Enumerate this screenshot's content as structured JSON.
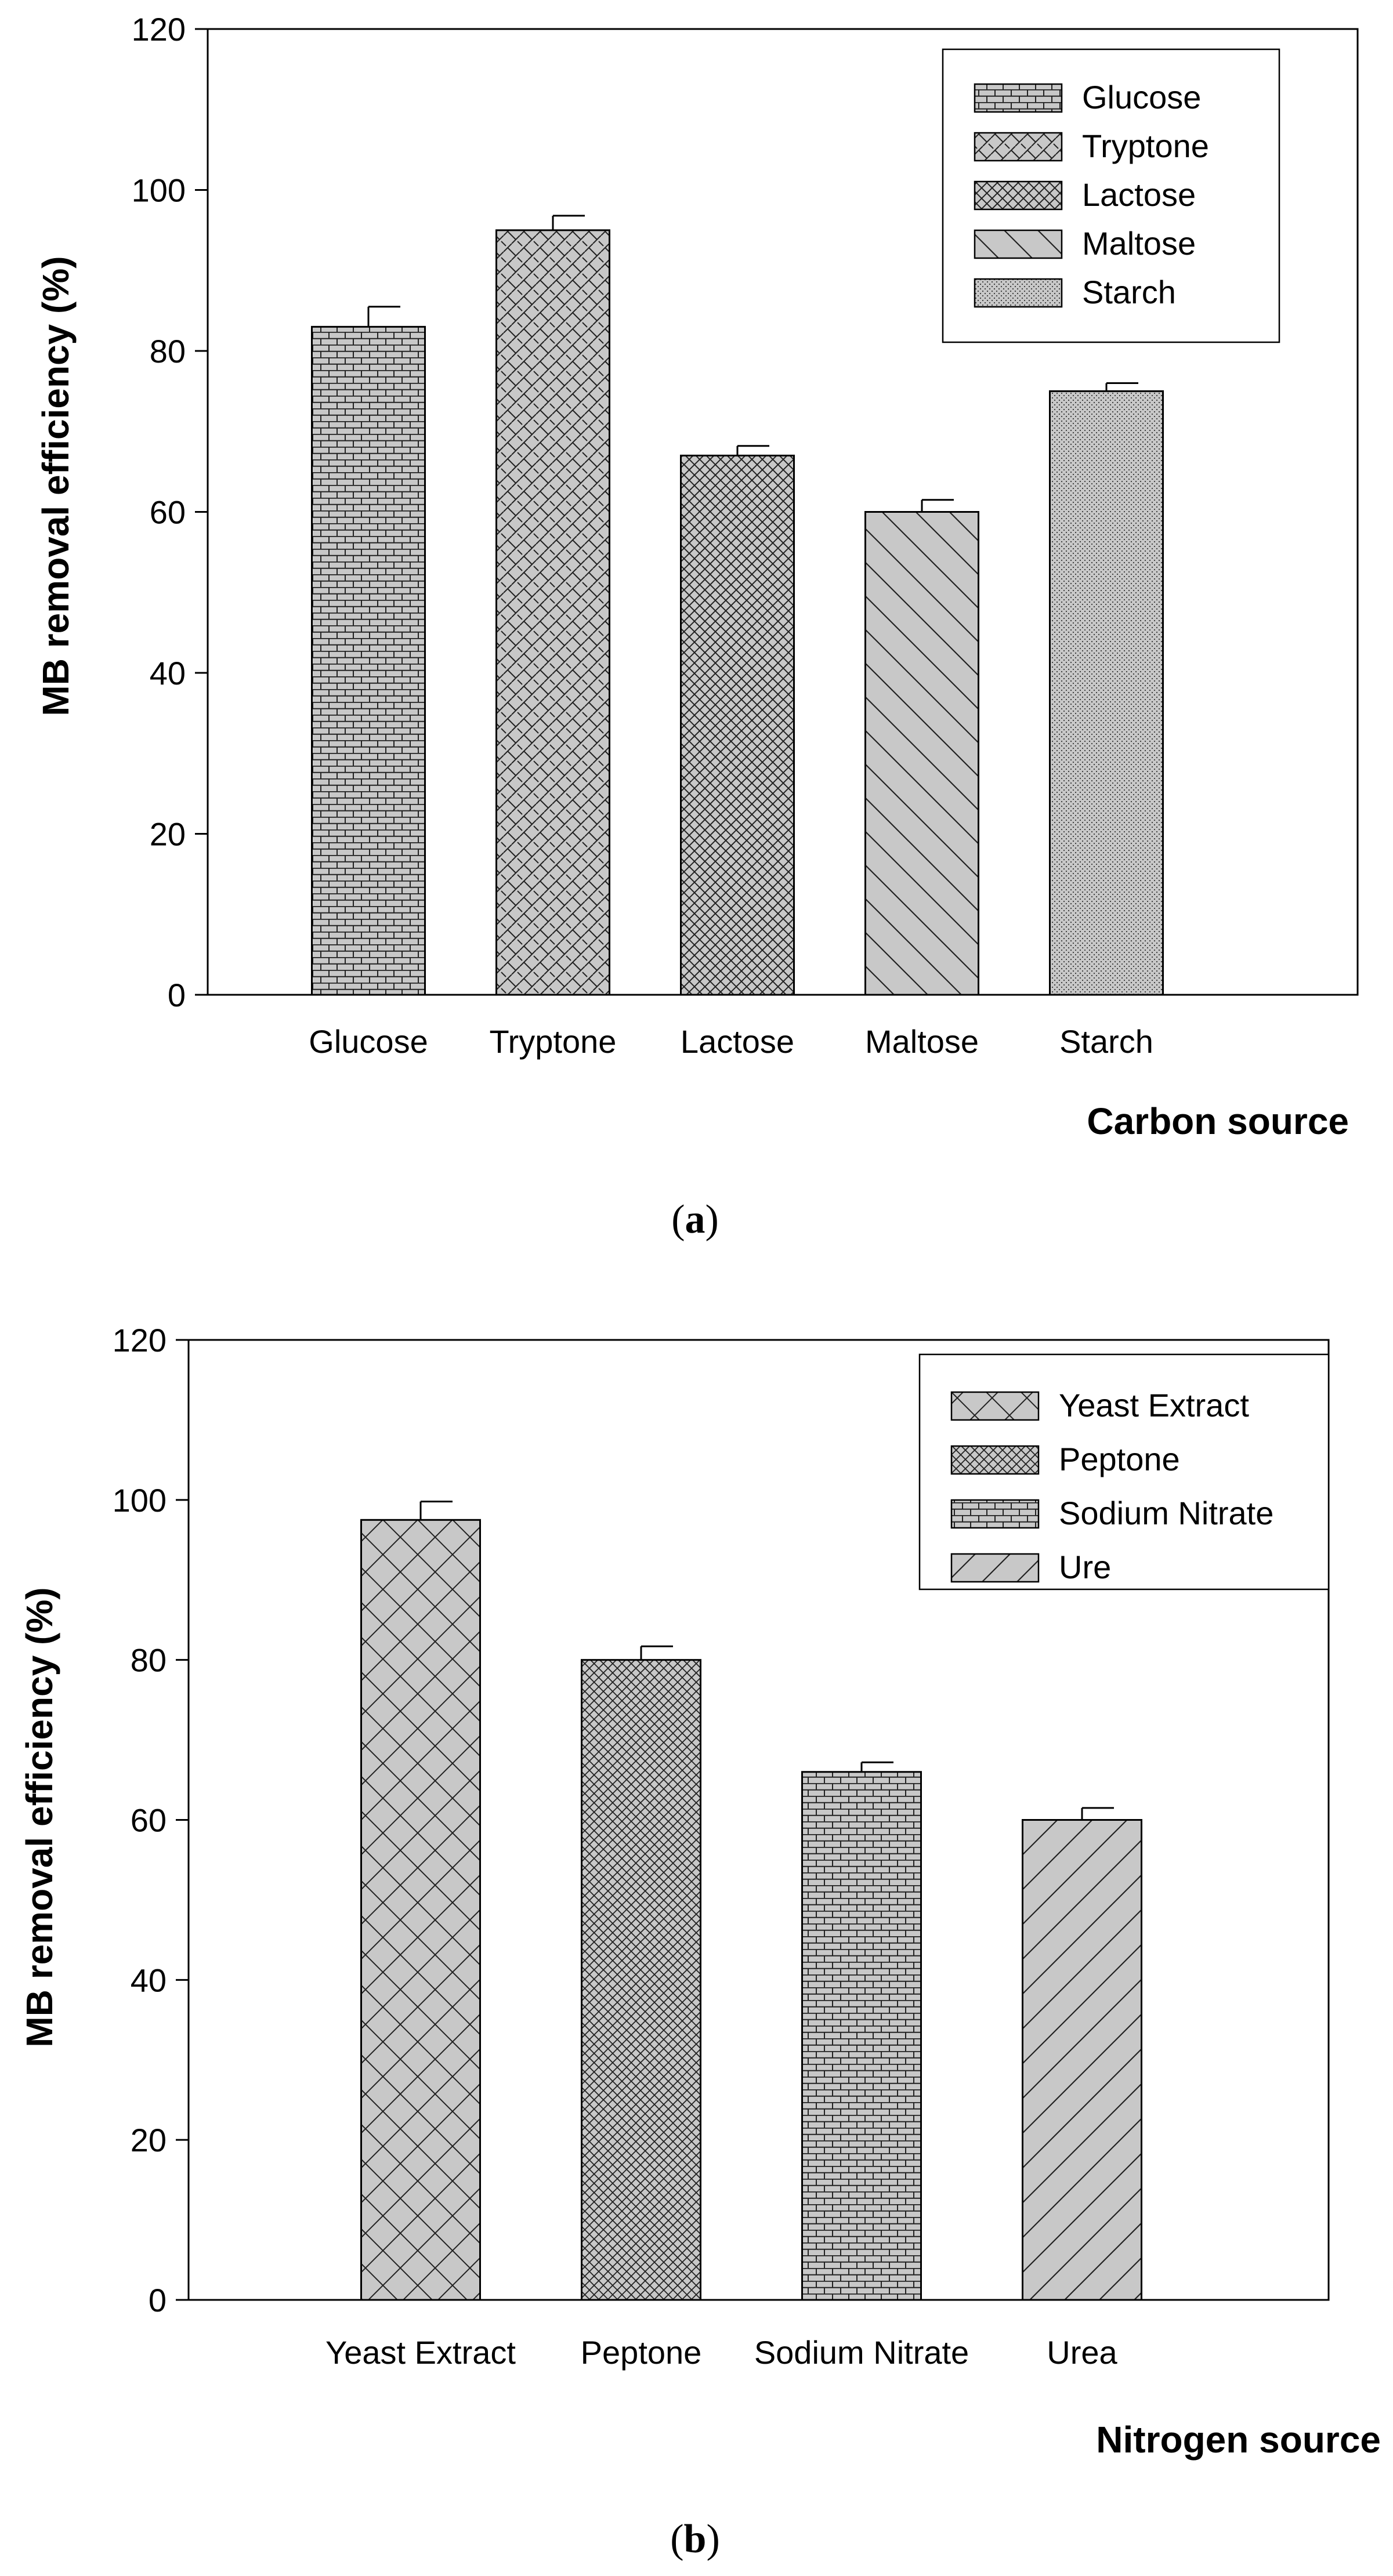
{
  "chart_data": [
    {
      "type": "bar",
      "panel": "(a)",
      "categories": [
        "Glucose",
        "Tryptone",
        "Lactose",
        "Maltose",
        "Starch"
      ],
      "values": [
        83,
        95,
        67,
        60,
        75
      ],
      "errors": [
        2.5,
        1.8,
        1.2,
        1.5,
        1.0
      ],
      "legend": [
        "Glucose",
        "Tryptone",
        "Lactose",
        "Maltose",
        "Starch"
      ],
      "legend_placement": "top-right",
      "patterns": [
        "brick",
        "basket",
        "crosshatch",
        "backdiag",
        "dots"
      ],
      "xlabel": "Carbon source",
      "ylabel": "MB removal efficiency (%)",
      "ylim": [
        0,
        120
      ],
      "yticks": [
        0,
        20,
        40,
        60,
        80,
        100,
        120
      ],
      "caption_letter": "a"
    },
    {
      "type": "bar",
      "panel": "(b)",
      "categories": [
        "Yeast Extract",
        "Peptone",
        "Sodium Nitrate",
        "Urea"
      ],
      "values": [
        97.5,
        80,
        66,
        60
      ],
      "errors": [
        2.3,
        1.7,
        1.2,
        1.5
      ],
      "legend": [
        "Yeast Extract",
        "Peptone",
        "Sodium Nitrate",
        "Ure"
      ],
      "legend_placement": "top-right",
      "patterns": [
        "bigcross",
        "finecross",
        "brick",
        "fwddiag"
      ],
      "xlabel": "Nitrogen source",
      "ylabel": "MB removal efficiency (%)",
      "ylim": [
        0,
        120
      ],
      "yticks": [
        0,
        20,
        40,
        60,
        80,
        100,
        120
      ],
      "caption_letter": "b"
    }
  ],
  "colors": {
    "bar_fill": "#c8c8c8",
    "stroke": "#000000",
    "background": "#ffffff"
  }
}
